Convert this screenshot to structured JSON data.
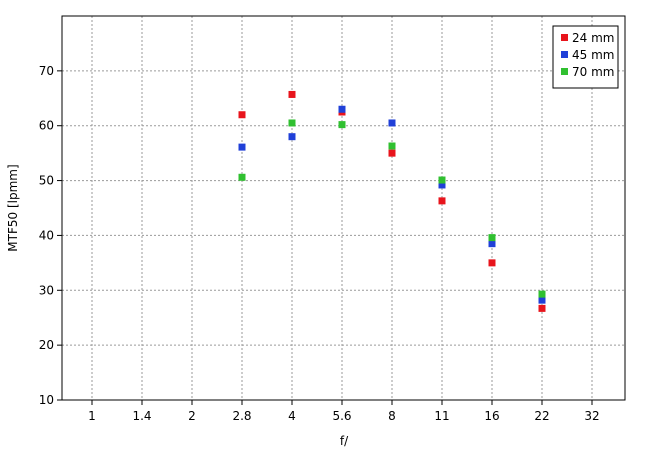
{
  "chart_data": {
    "type": "scatter",
    "title": "",
    "xlabel": "f/",
    "ylabel": "MTF50 [lpmm]",
    "x_ticks": [
      "1",
      "1.4",
      "2",
      "2.8",
      "4",
      "5.6",
      "8",
      "11",
      "16",
      "22",
      "32"
    ],
    "ylim": [
      10,
      80
    ],
    "y_ticks": [
      10,
      20,
      30,
      40,
      50,
      60,
      70
    ],
    "grid": true,
    "legend_position": "top-right",
    "series": [
      {
        "name": "24 mm",
        "color": "#e8141c",
        "x": [
          "2.8",
          "4",
          "5.6",
          "8",
          "11",
          "16",
          "22"
        ],
        "values": [
          62.0,
          65.7,
          62.5,
          55.0,
          46.3,
          35.0,
          26.7
        ]
      },
      {
        "name": "45 mm",
        "color": "#2040d8",
        "x": [
          "2.8",
          "4",
          "5.6",
          "8",
          "11",
          "16",
          "22"
        ],
        "values": [
          56.1,
          58.0,
          63.0,
          60.5,
          49.2,
          38.5,
          28.2
        ]
      },
      {
        "name": "70 mm",
        "color": "#30c030",
        "x": [
          "2.8",
          "4",
          "5.6",
          "8",
          "11",
          "16",
          "22"
        ],
        "values": [
          50.6,
          60.5,
          60.2,
          56.3,
          50.1,
          39.6,
          29.3
        ]
      }
    ]
  }
}
